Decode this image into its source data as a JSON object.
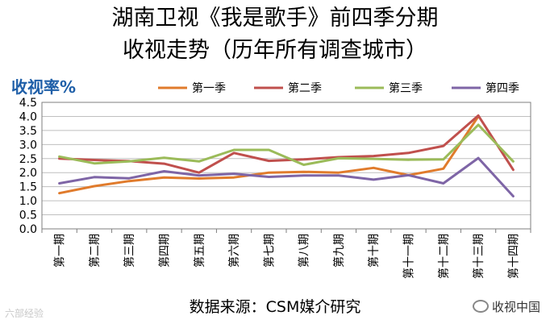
{
  "title_line1": "湖南卫视《我是歌手》前四季分期",
  "title_line2": "收视走势（历年所有调查城市）",
  "source": "数据来源：CSM媒介研究",
  "watermark_left": "六部经验",
  "watermark_right": "收视中国",
  "chart_data": {
    "type": "line",
    "title": "",
    "xlabel": "",
    "ylabel": "收视率%",
    "ylim": [
      0,
      4.5
    ],
    "yticks": [
      "0.0",
      "0.5",
      "1.0",
      "1.5",
      "2.0",
      "2.5",
      "3.0",
      "3.5",
      "4.0",
      "4.5"
    ],
    "grid": true,
    "legend_position": "top",
    "categories": [
      "第一期",
      "第二期",
      "第三期",
      "第四期",
      "第五期",
      "第六期",
      "第七期",
      "第八期",
      "第九期",
      "第十期",
      "第十一期",
      "第十二期",
      "第十三期",
      "第十四期"
    ],
    "series": [
      {
        "name": "第一季",
        "color": "#e07b2c",
        "values": [
          1.27,
          1.52,
          1.7,
          1.83,
          1.79,
          1.83,
          2.0,
          2.03,
          2.0,
          2.17,
          1.91,
          2.14,
          4.0,
          null
        ]
      },
      {
        "name": "第二季",
        "color": "#c0504d",
        "values": [
          2.5,
          2.45,
          2.41,
          2.32,
          2.0,
          2.7,
          2.42,
          2.47,
          2.55,
          2.59,
          2.7,
          2.95,
          4.03,
          2.1
        ]
      },
      {
        "name": "第三季",
        "color": "#9bbb59",
        "values": [
          2.57,
          2.33,
          2.4,
          2.53,
          2.4,
          2.81,
          2.81,
          2.28,
          2.51,
          2.49,
          2.46,
          2.47,
          3.7,
          2.4
        ]
      },
      {
        "name": "第四季",
        "color": "#7e65a6",
        "values": [
          1.62,
          1.84,
          1.8,
          2.05,
          1.9,
          1.96,
          1.85,
          1.9,
          1.9,
          1.75,
          1.91,
          1.62,
          2.52,
          1.16
        ]
      }
    ]
  }
}
